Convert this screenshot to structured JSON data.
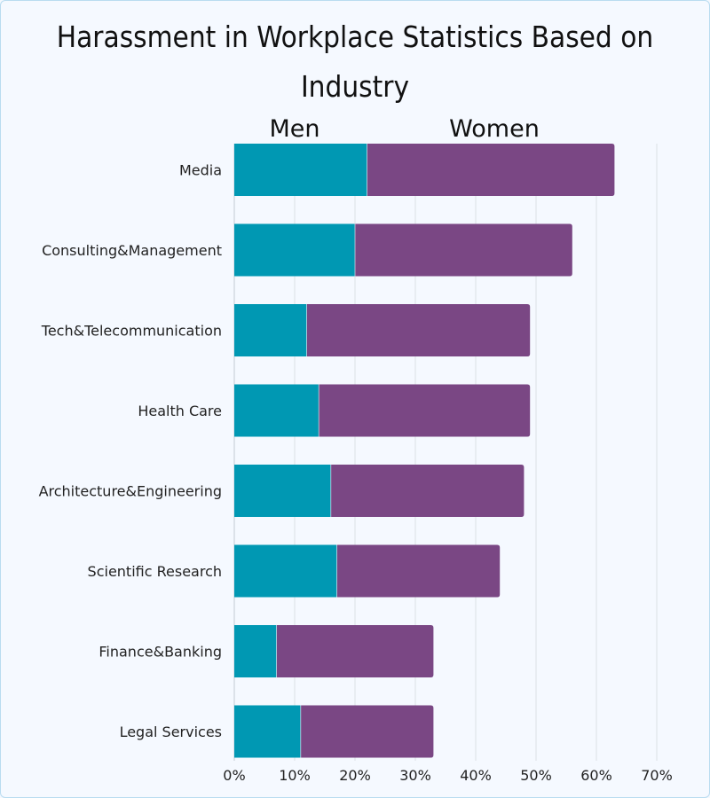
{
  "chart_data": {
    "type": "bar",
    "orientation": "horizontal",
    "stacked": true,
    "title": "Harassment in Workplace Statistics Based on Industry",
    "categories": [
      "Media",
      "Consulting&Management",
      "Tech&Telecommunication",
      "Health Care",
      "Architecture&Engineering",
      "Scientific Research",
      "Finance&Banking",
      "Legal Services"
    ],
    "series": [
      {
        "name": "Men",
        "color": "#0098b3",
        "values": [
          22,
          20,
          12,
          14,
          16,
          17,
          7,
          11
        ]
      },
      {
        "name": "Women",
        "color": "#7a4784",
        "values": [
          41,
          36,
          37,
          35,
          32,
          27,
          26,
          22
        ]
      }
    ],
    "xlim": [
      0,
      70
    ],
    "xticks": [
      "0%",
      "10%",
      "20%",
      "30%",
      "40%",
      "50%",
      "60%",
      "70%"
    ],
    "grid": true,
    "legend": "top"
  }
}
